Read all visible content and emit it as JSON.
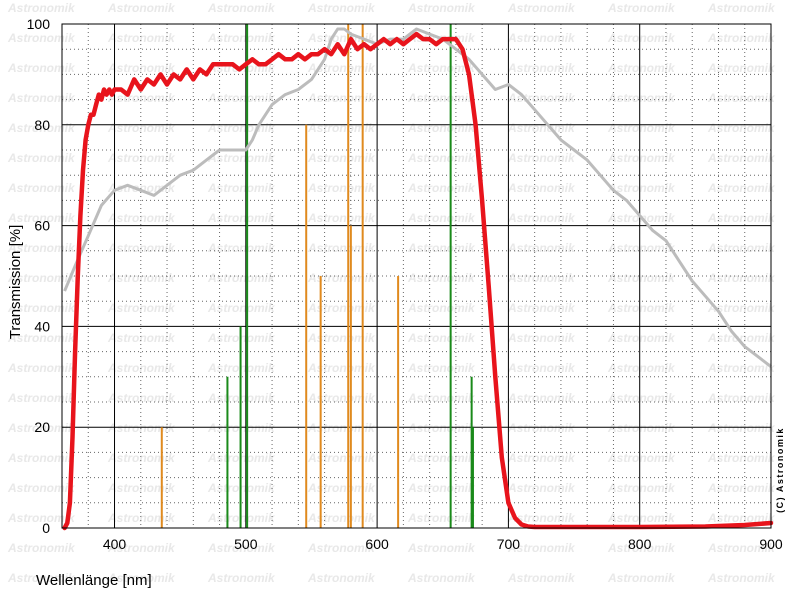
{
  "chart_data": {
    "type": "line",
    "xlabel": "Wellenlänge [nm]",
    "ylabel": "Transmission [%]",
    "xlim": [
      360,
      900
    ],
    "ylim": [
      0,
      100
    ],
    "x_ticks": [
      400,
      500,
      600,
      700,
      800,
      900
    ],
    "y_ticks": [
      0,
      20,
      40,
      60,
      80,
      100
    ],
    "grid": true,
    "watermark": "Astronomik",
    "copyright": "(C) Astronomik",
    "colors": {
      "filter": "#e8141c",
      "reference": "#bcbcbc",
      "green_lines": "#1a8a1a",
      "orange_lines": "#e08a1e",
      "grid_major": "#000000",
      "grid_minor": "#666666"
    },
    "series": [
      {
        "key": "filter",
        "x": [
          362,
          364,
          366,
          368,
          370,
          372,
          374,
          376,
          378,
          380,
          382,
          384,
          386,
          388,
          390,
          392,
          394,
          396,
          398,
          400,
          405,
          410,
          415,
          420,
          425,
          430,
          435,
          440,
          445,
          450,
          455,
          460,
          465,
          470,
          475,
          480,
          485,
          490,
          495,
          500,
          505,
          510,
          515,
          520,
          525,
          530,
          535,
          540,
          545,
          550,
          555,
          560,
          565,
          570,
          575,
          580,
          585,
          590,
          595,
          600,
          605,
          610,
          615,
          620,
          625,
          630,
          635,
          640,
          645,
          650,
          655,
          660,
          665,
          670,
          675,
          680,
          685,
          690,
          695,
          700,
          705,
          710,
          715,
          720,
          730,
          750,
          800,
          850,
          880,
          900
        ],
        "y": [
          0,
          1,
          5,
          18,
          35,
          50,
          62,
          71,
          77,
          80,
          82,
          82,
          84,
          86,
          85,
          87,
          86,
          87,
          86,
          87,
          87,
          86,
          89,
          87,
          89,
          88,
          90,
          88,
          90,
          89,
          91,
          89,
          91,
          90,
          92,
          92,
          92,
          92,
          91,
          92,
          93,
          92,
          92,
          93,
          94,
          93,
          93,
          94,
          93,
          94,
          94,
          95,
          94,
          96,
          94,
          97,
          95,
          96,
          95,
          96,
          97,
          96,
          97,
          96,
          97,
          98,
          97,
          97,
          96,
          97,
          97,
          97,
          95,
          90,
          80,
          65,
          48,
          30,
          14,
          5,
          2,
          0.7,
          0.3,
          0.2,
          0.2,
          0.2,
          0.2,
          0.3,
          0.6,
          1.0
        ]
      },
      {
        "key": "reference",
        "x": [
          362,
          370,
          380,
          390,
          400,
          410,
          420,
          430,
          440,
          450,
          460,
          470,
          480,
          490,
          500,
          505,
          510,
          520,
          530,
          540,
          550,
          560,
          565,
          570,
          575,
          580,
          590,
          600,
          610,
          620,
          630,
          640,
          650,
          660,
          670,
          680,
          690,
          700,
          710,
          720,
          730,
          740,
          750,
          760,
          770,
          780,
          790,
          800,
          810,
          820,
          830,
          840,
          850,
          860,
          870,
          880,
          890,
          900
        ],
        "y": [
          47,
          52,
          58,
          64,
          67,
          68,
          67,
          66,
          68,
          70,
          71,
          73,
          75,
          75,
          75,
          77,
          80,
          84,
          86,
          87,
          89,
          93,
          97,
          99,
          99,
          98,
          97,
          96,
          97,
          97,
          99,
          98,
          97,
          95,
          93,
          90,
          87,
          88,
          86,
          83,
          80,
          77,
          75,
          73,
          70,
          67,
          65,
          62,
          59,
          57,
          53,
          49,
          46,
          43,
          39,
          36,
          34,
          32
        ]
      }
    ],
    "emission_lines": [
      {
        "x": 436,
        "y": 20,
        "color": "orange"
      },
      {
        "x": 486,
        "y": 30,
        "color": "green"
      },
      {
        "x": 496,
        "y": 40,
        "color": "green"
      },
      {
        "x": 501,
        "y": 100,
        "color": "green"
      },
      {
        "x": 546,
        "y": 80,
        "color": "orange"
      },
      {
        "x": 557,
        "y": 50,
        "color": "orange"
      },
      {
        "x": 578,
        "y": 100,
        "color": "orange"
      },
      {
        "x": 580,
        "y": 60,
        "color": "orange"
      },
      {
        "x": 589,
        "y": 100,
        "color": "orange"
      },
      {
        "x": 616,
        "y": 50,
        "color": "orange"
      },
      {
        "x": 656,
        "y": 100,
        "color": "green"
      },
      {
        "x": 672,
        "y": 30,
        "color": "green"
      },
      {
        "x": 673,
        "y": 20,
        "color": "green"
      }
    ]
  }
}
